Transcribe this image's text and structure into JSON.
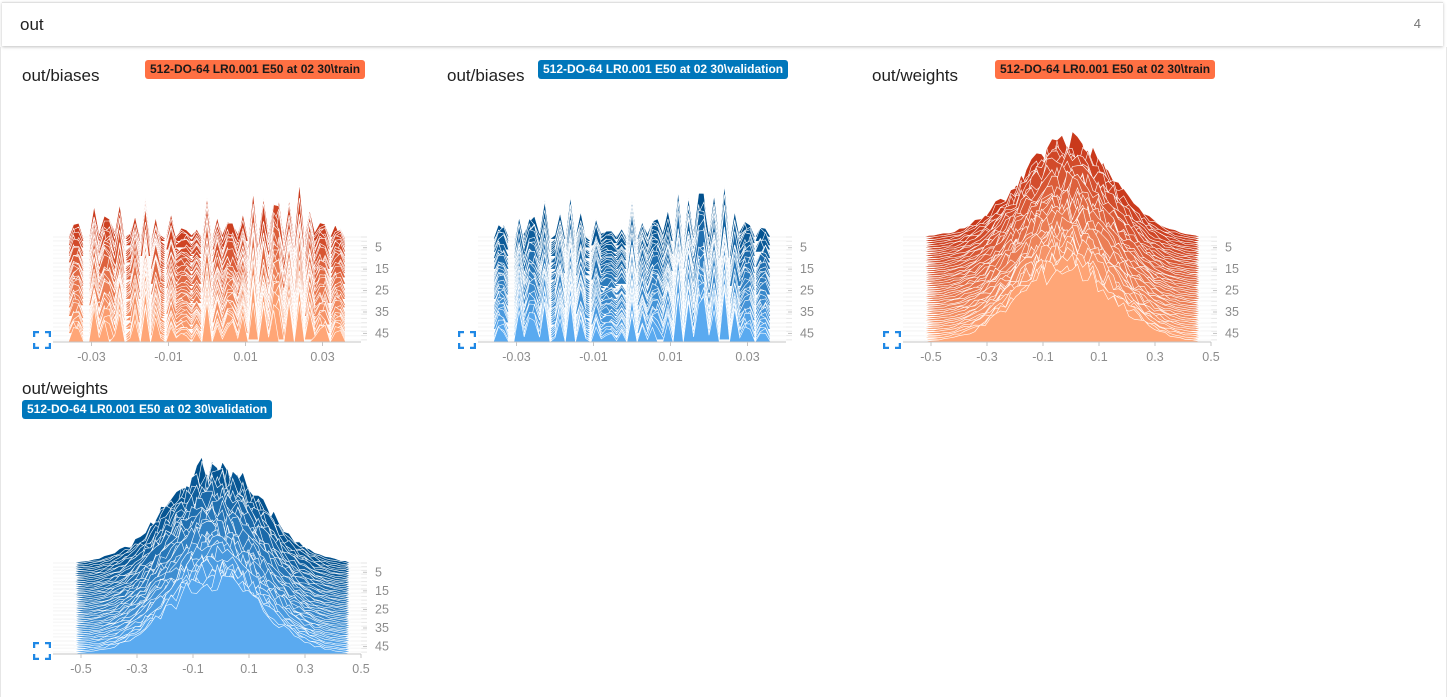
{
  "header": {
    "title": "out",
    "count": "4"
  },
  "cards": [
    {
      "title": "out/biases",
      "run": "512-DO-64 LR0.001 E50 at 02 30\\train",
      "run_color": "#ff7043",
      "expand_icon": "fullscreen-icon"
    },
    {
      "title": "out/biases",
      "run": "512-DO-64 LR0.001 E50 at 02 30\\validation",
      "run_color": "#0077bb",
      "expand_icon": "fullscreen-icon"
    },
    {
      "title": "out/weights",
      "run": "512-DO-64 LR0.001 E50 at 02 30\\train",
      "run_color": "#ff7043",
      "expand_icon": "fullscreen-icon"
    },
    {
      "title": "out/weights",
      "run": "512-DO-64 LR0.001 E50 at 02 30\\validation",
      "run_color": "#0077bb",
      "expand_icon": "fullscreen-icon"
    }
  ],
  "chart_data": [
    {
      "type": "area",
      "subtype": "histogram-offset",
      "title": "out/biases",
      "run": "512-DO-64 LR0.001 E50 at 02 30\\train",
      "x_ticks": [
        -0.03,
        -0.01,
        0.01,
        0.03
      ],
      "x_tick_labels": [
        "-0.03",
        "-0.01",
        "0.01",
        "0.03"
      ],
      "xlim": [
        -0.04,
        0.04
      ],
      "step_ticks": [
        5,
        15,
        25,
        35,
        45
      ],
      "step_range": [
        0,
        49
      ],
      "colors": {
        "oldest": "#ffa677",
        "newest": "#c9391b"
      },
      "profile": {
        "kind": "sparse",
        "centers": [
          -0.034,
          -0.029,
          -0.026,
          -0.023,
          -0.019,
          -0.016,
          -0.013,
          -0.009,
          -0.006,
          -0.003,
          0.0,
          0.003,
          0.006,
          0.009,
          0.012,
          0.015,
          0.018,
          0.021,
          0.024,
          0.027,
          0.03,
          0.034
        ],
        "heights": [
          0.35,
          0.45,
          0.55,
          0.5,
          0.4,
          0.45,
          0.35,
          0.3,
          0.2,
          0.15,
          0.4,
          0.3,
          0.45,
          0.35,
          0.5,
          0.55,
          1.0,
          0.55,
          0.5,
          0.45,
          0.4,
          0.3
        ]
      }
    },
    {
      "type": "area",
      "subtype": "histogram-offset",
      "title": "out/biases",
      "run": "512-DO-64 LR0.001 E50 at 02 30\\validation",
      "x_ticks": [
        -0.03,
        -0.01,
        0.01,
        0.03
      ],
      "x_tick_labels": [
        "-0.03",
        "-0.01",
        "0.01",
        "0.03"
      ],
      "xlim": [
        -0.04,
        0.04
      ],
      "step_ticks": [
        5,
        15,
        25,
        35,
        45
      ],
      "step_range": [
        0,
        49
      ],
      "colors": {
        "oldest": "#5aaaf0",
        "newest": "#004f8c"
      },
      "profile": {
        "kind": "sparse",
        "centers": [
          -0.034,
          -0.029,
          -0.026,
          -0.023,
          -0.019,
          -0.016,
          -0.013,
          -0.009,
          -0.006,
          -0.003,
          0.0,
          0.003,
          0.006,
          0.009,
          0.012,
          0.015,
          0.018,
          0.021,
          0.024,
          0.027,
          0.03,
          0.034
        ],
        "heights": [
          0.35,
          0.45,
          0.55,
          0.5,
          0.4,
          0.45,
          0.35,
          0.3,
          0.2,
          0.15,
          0.4,
          0.3,
          0.45,
          0.35,
          0.5,
          0.55,
          1.0,
          0.55,
          0.5,
          0.45,
          0.4,
          0.3
        ]
      }
    },
    {
      "type": "area",
      "subtype": "histogram-offset",
      "title": "out/weights",
      "run": "512-DO-64 LR0.001 E50 at 02 30\\train",
      "x_ticks": [
        -0.5,
        -0.3,
        -0.1,
        0.1,
        0.3,
        0.5
      ],
      "x_tick_labels": [
        "-0.5",
        "-0.3",
        "-0.1",
        "0.1",
        "0.3",
        "0.5"
      ],
      "xlim": [
        -0.6,
        0.5
      ],
      "step_ticks": [
        5,
        15,
        25,
        35,
        45
      ],
      "step_range": [
        0,
        49
      ],
      "colors": {
        "oldest": "#ffa677",
        "newest": "#c9391b"
      },
      "profile": {
        "kind": "bell",
        "center": -0.02,
        "spread": 0.17,
        "support": [
          -0.52,
          0.45
        ]
      }
    },
    {
      "type": "area",
      "subtype": "histogram-offset",
      "title": "out/weights",
      "run": "512-DO-64 LR0.001 E50 at 02 30\\validation",
      "x_ticks": [
        -0.5,
        -0.3,
        -0.1,
        0.1,
        0.3,
        0.5
      ],
      "x_tick_labels": [
        "-0.5",
        "-0.3",
        "-0.1",
        "0.1",
        "0.3",
        "0.5"
      ],
      "xlim": [
        -0.6,
        0.5
      ],
      "step_ticks": [
        5,
        15,
        25,
        35,
        45
      ],
      "step_range": [
        0,
        49
      ],
      "colors": {
        "oldest": "#5aaaf0",
        "newest": "#004f8c"
      },
      "profile": {
        "kind": "bell",
        "center": -0.02,
        "spread": 0.17,
        "support": [
          -0.52,
          0.45
        ]
      }
    }
  ]
}
